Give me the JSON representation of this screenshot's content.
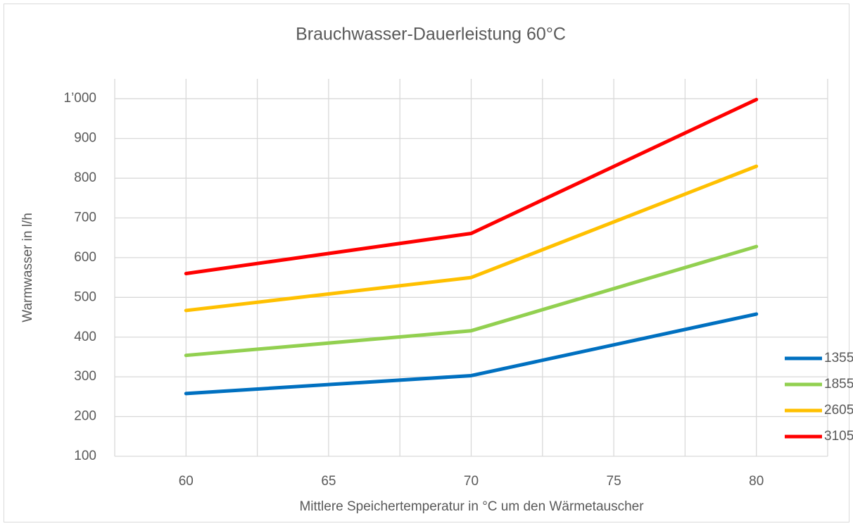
{
  "chart_data": {
    "type": "line",
    "title": "Brauchwasser-Dauerleistung 60°C",
    "x_label": "Mittlere Speichertemperatur in °C um den Wärmetauscher",
    "y_label": "Warmwasser  in l/h",
    "x": [
      60,
      70,
      80
    ],
    "series": [
      {
        "name": "1355",
        "color": "#0070c0",
        "values": [
          258,
          303,
          458
        ]
      },
      {
        "name": "1855",
        "color": "#92d050",
        "values": [
          354,
          416,
          628
        ]
      },
      {
        "name": "2605",
        "color": "#ffc000",
        "values": [
          467,
          550,
          830
        ]
      },
      {
        "name": "3105",
        "color": "#ff0000",
        "values": [
          560,
          661,
          998
        ]
      }
    ],
    "xlim": [
      57.5,
      82.5
    ],
    "xticks": [
      60,
      65,
      70,
      75,
      80
    ],
    "xminorticks": [
      57.5,
      62.5,
      67.5,
      72.5,
      77.5,
      82.5
    ],
    "ylim": [
      100,
      1050
    ],
    "yticks": [
      100,
      200,
      300,
      400,
      500,
      600,
      700,
      800,
      900,
      {
        "value": 1000,
        "label": "1’000"
      }
    ],
    "grid": true,
    "legend": "lower right"
  }
}
